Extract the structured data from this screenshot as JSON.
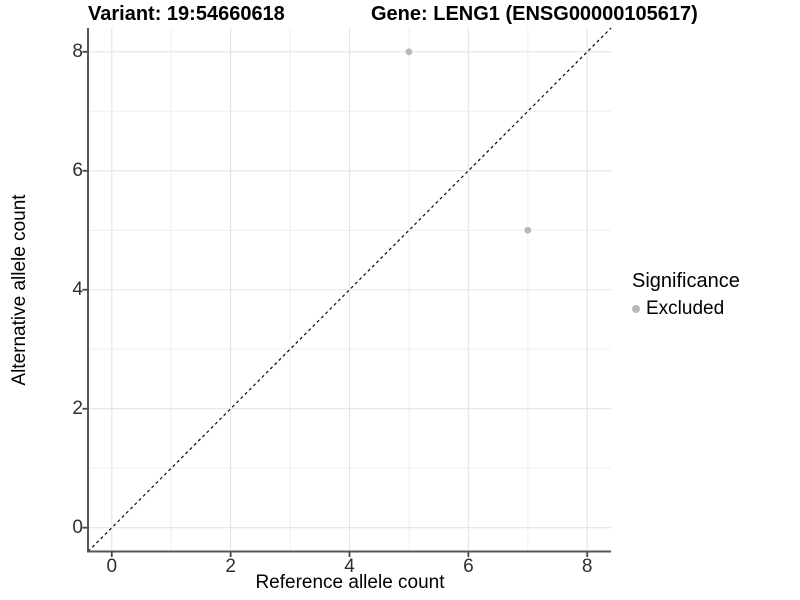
{
  "chart_data": {
    "type": "scatter",
    "title_left": "Variant: 19:54660618",
    "title_right": "Gene: LENG1 (ENSG00000105617)",
    "xlabel": "Reference allele count",
    "ylabel": "Alternative allele count",
    "xlim": [
      -0.4,
      8.4
    ],
    "ylim": [
      -0.4,
      8.4
    ],
    "x_major_ticks": [
      0,
      2,
      4,
      6,
      8
    ],
    "y_major_ticks": [
      0,
      2,
      4,
      6,
      8
    ],
    "x_minor_ticks": [
      1,
      3,
      5,
      7
    ],
    "y_minor_ticks": [
      1,
      3,
      5,
      7
    ],
    "grid": true,
    "identity_line": {
      "style": "dashed",
      "from": [
        -0.4,
        -0.4
      ],
      "to": [
        8.4,
        8.4
      ]
    },
    "series": [
      {
        "name": "Excluded",
        "color": "#b8b8b8",
        "points": [
          [
            5,
            8
          ],
          [
            7,
            5
          ]
        ]
      }
    ],
    "legend": {
      "title": "Significance",
      "position": "right",
      "items": [
        {
          "label": "Excluded",
          "color": "#b8b8b8",
          "marker": "dot"
        }
      ]
    }
  },
  "colors": {
    "background": "#ffffff",
    "major_grid": "#e4e4e4",
    "minor_grid": "#efefef",
    "axis_line": "#565656",
    "tick_mark": "#454545",
    "tick_text": "#303030",
    "identity_line": "#1a1a1a",
    "point": "#b8b8b8"
  }
}
